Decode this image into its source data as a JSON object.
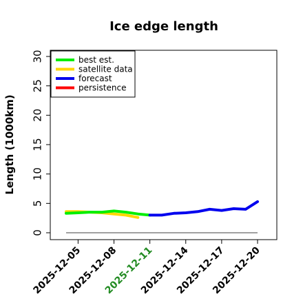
{
  "chart_data": {
    "type": "line",
    "title": "Ice edge length",
    "ylabel": "Length (1000km)",
    "xlabel": "",
    "ylim": [
      0,
      30
    ],
    "yticks": [
      0,
      5,
      10,
      15,
      20,
      25,
      30
    ],
    "xlim": [
      "2025-12-04",
      "2025-12-22"
    ],
    "xticks": [
      {
        "label": "2025-12-05",
        "value": "2025-12-05",
        "color": "#000000"
      },
      {
        "label": "2025-12-08",
        "value": "2025-12-08",
        "color": "#000000"
      },
      {
        "label": "2025-12-11",
        "value": "2025-12-11",
        "color": "#228B22"
      },
      {
        "label": "2025-12-14",
        "value": "2025-12-14",
        "color": "#000000"
      },
      {
        "label": "2025-12-17",
        "value": "2025-12-17",
        "color": "#000000"
      },
      {
        "label": "2025-12-20",
        "value": "2025-12-20",
        "color": "#000000"
      }
    ],
    "legend": {
      "position": "top-left",
      "entries": [
        {
          "label": "best est.",
          "color": "#00ee00"
        },
        {
          "label": "satellite data",
          "color": "#ffd700"
        },
        {
          "label": "forecast",
          "color": "#0000ee"
        },
        {
          "label": "persistence",
          "color": "#ff0000"
        }
      ]
    },
    "series": [
      {
        "name": "best est.",
        "color": "#00ee00",
        "x": [
          "2025-12-04",
          "2025-12-05",
          "2025-12-06",
          "2025-12-07",
          "2025-12-08",
          "2025-12-09",
          "2025-12-10",
          "2025-12-11"
        ],
        "y": [
          3.3,
          3.4,
          3.5,
          3.5,
          3.7,
          3.5,
          3.2,
          3.0
        ]
      },
      {
        "name": "satellite data",
        "color": "#ffd700",
        "x": [
          "2025-12-04",
          "2025-12-05",
          "2025-12-06",
          "2025-12-07",
          "2025-12-08",
          "2025-12-09",
          "2025-12-10"
        ],
        "y": [
          3.6,
          3.6,
          3.5,
          3.4,
          3.2,
          3.0,
          2.6
        ]
      },
      {
        "name": "forecast",
        "color": "#0000ee",
        "x": [
          "2025-12-11",
          "2025-12-12",
          "2025-12-13",
          "2025-12-14",
          "2025-12-15",
          "2025-12-16",
          "2025-12-17",
          "2025-12-18",
          "2025-12-19",
          "2025-12-20"
        ],
        "y": [
          3.0,
          3.0,
          3.3,
          3.4,
          3.6,
          4.0,
          3.8,
          4.1,
          4.0,
          5.3
        ]
      },
      {
        "name": "persistence",
        "color": "#ff0000",
        "x": [],
        "y": []
      }
    ],
    "reference_line": {
      "y": 0,
      "x": [
        "2025-12-04",
        "2025-12-20"
      ],
      "color": "#808080"
    }
  }
}
